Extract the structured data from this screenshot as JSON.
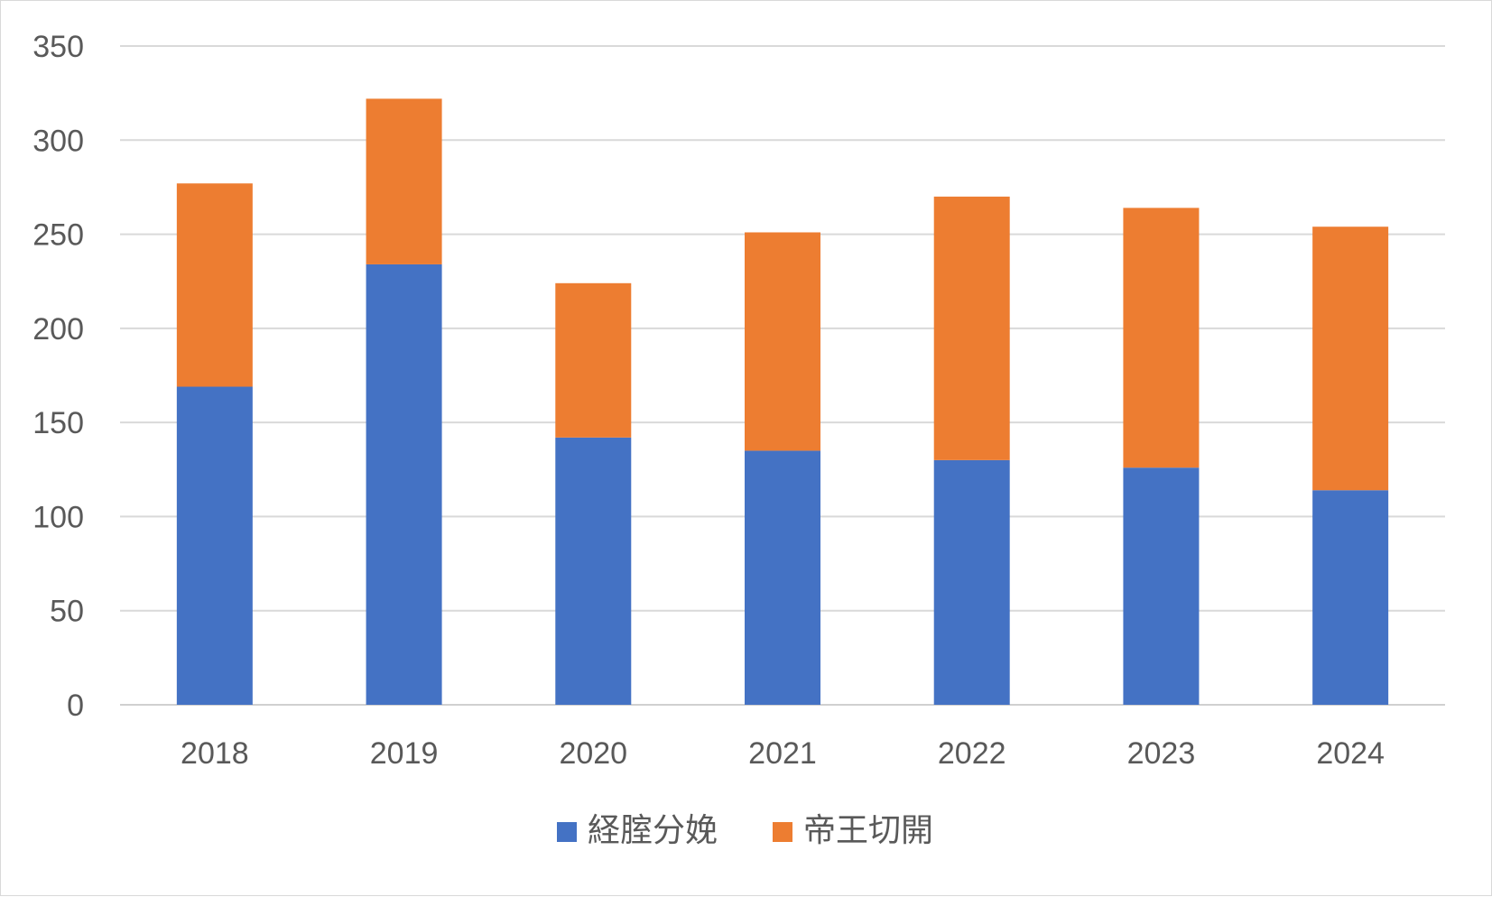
{
  "chart_data": {
    "type": "bar",
    "stacked": true,
    "categories": [
      "2018",
      "2019",
      "2020",
      "2021",
      "2022",
      "2023",
      "2024"
    ],
    "series": [
      {
        "name": "経腟分娩",
        "color": "#4472C4",
        "values": [
          169,
          234,
          142,
          135,
          130,
          126,
          114
        ]
      },
      {
        "name": "帝王切開",
        "color": "#ED7D31",
        "values": [
          108,
          88,
          82,
          116,
          140,
          138,
          140
        ]
      }
    ],
    "title": "",
    "xlabel": "",
    "ylabel": "",
    "ylim": [
      0,
      350
    ],
    "yticks": [
      "0",
      "50",
      "100",
      "150",
      "200",
      "250",
      "300",
      "350"
    ],
    "grid": true,
    "legend_position": "bottom"
  }
}
